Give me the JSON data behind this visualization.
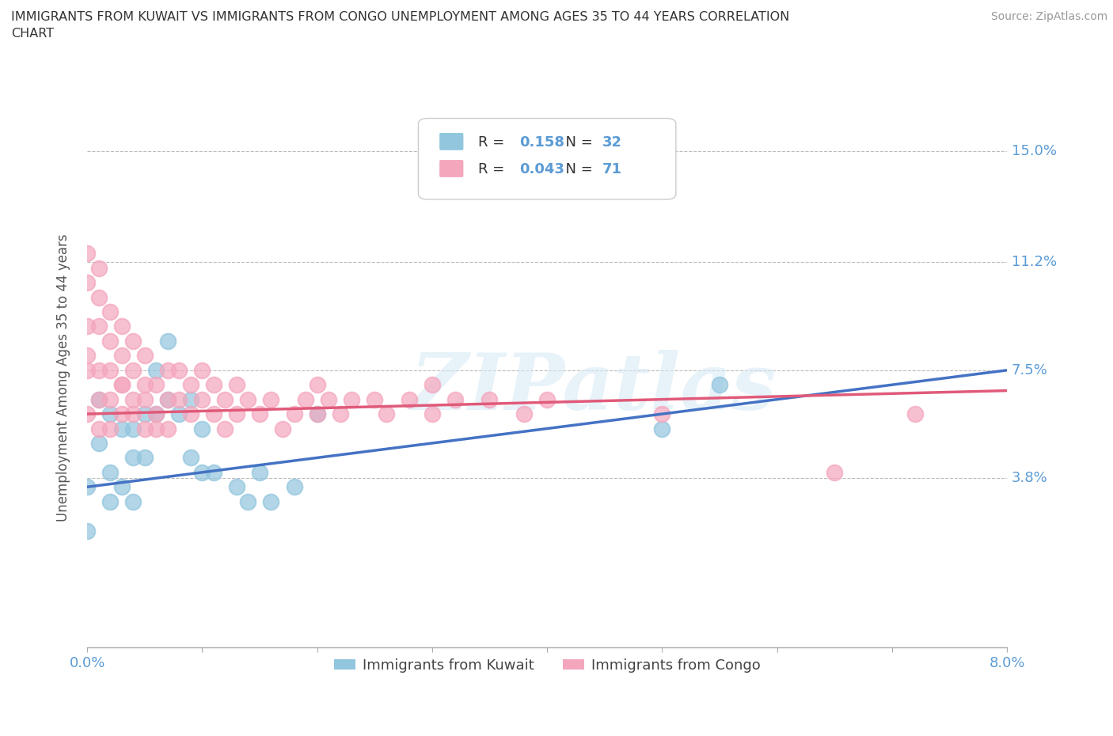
{
  "title": "IMMIGRANTS FROM KUWAIT VS IMMIGRANTS FROM CONGO UNEMPLOYMENT AMONG AGES 35 TO 44 YEARS CORRELATION\nCHART",
  "source_text": "Source: ZipAtlas.com",
  "ylabel": "Unemployment Among Ages 35 to 44 years",
  "xlim": [
    0.0,
    0.08
  ],
  "ylim": [
    -0.02,
    0.165
  ],
  "yticks": [
    0.038,
    0.075,
    0.112,
    0.15
  ],
  "ytick_labels": [
    "3.8%",
    "7.5%",
    "11.2%",
    "15.0%"
  ],
  "xticks": [
    0.0,
    0.01,
    0.02,
    0.03,
    0.04,
    0.05,
    0.06,
    0.07,
    0.08
  ],
  "xtick_labels": [
    "0.0%",
    "",
    "",
    "",
    "",
    "",
    "",
    "",
    "8.0%"
  ],
  "kuwait_color": "#92c5de",
  "congo_color": "#f4a6bd",
  "kuwait_line_color": "#4472c4",
  "congo_line_color": "#e05a7a",
  "kuwait_R": "0.158",
  "kuwait_N": "32",
  "congo_R": "0.043",
  "congo_N": "71",
  "watermark": "ZIPatlas",
  "legend_label_kuwait": "Immigrants from Kuwait",
  "legend_label_congo": "Immigrants from Congo",
  "kuwait_scatter_x": [
    0.0,
    0.0,
    0.001,
    0.001,
    0.002,
    0.002,
    0.002,
    0.003,
    0.003,
    0.004,
    0.004,
    0.004,
    0.005,
    0.005,
    0.006,
    0.006,
    0.007,
    0.007,
    0.008,
    0.009,
    0.009,
    0.01,
    0.01,
    0.011,
    0.013,
    0.014,
    0.015,
    0.016,
    0.018,
    0.02,
    0.05,
    0.055
  ],
  "kuwait_scatter_y": [
    0.035,
    0.02,
    0.05,
    0.065,
    0.04,
    0.06,
    0.03,
    0.055,
    0.035,
    0.045,
    0.03,
    0.055,
    0.06,
    0.045,
    0.06,
    0.075,
    0.065,
    0.085,
    0.06,
    0.065,
    0.045,
    0.055,
    0.04,
    0.04,
    0.035,
    0.03,
    0.04,
    0.03,
    0.035,
    0.06,
    0.055,
    0.07
  ],
  "congo_scatter_x": [
    0.0,
    0.0,
    0.0,
    0.0,
    0.0,
    0.0,
    0.001,
    0.001,
    0.001,
    0.001,
    0.001,
    0.001,
    0.002,
    0.002,
    0.002,
    0.002,
    0.002,
    0.003,
    0.003,
    0.003,
    0.003,
    0.003,
    0.004,
    0.004,
    0.004,
    0.004,
    0.005,
    0.005,
    0.005,
    0.005,
    0.006,
    0.006,
    0.006,
    0.007,
    0.007,
    0.007,
    0.008,
    0.008,
    0.009,
    0.009,
    0.01,
    0.01,
    0.011,
    0.011,
    0.012,
    0.012,
    0.013,
    0.013,
    0.014,
    0.015,
    0.016,
    0.017,
    0.018,
    0.019,
    0.02,
    0.02,
    0.021,
    0.022,
    0.023,
    0.025,
    0.026,
    0.028,
    0.03,
    0.03,
    0.032,
    0.035,
    0.038,
    0.04,
    0.05,
    0.065,
    0.072
  ],
  "congo_scatter_y": [
    0.06,
    0.075,
    0.09,
    0.105,
    0.115,
    0.08,
    0.065,
    0.075,
    0.09,
    0.1,
    0.11,
    0.055,
    0.065,
    0.075,
    0.085,
    0.095,
    0.055,
    0.07,
    0.08,
    0.09,
    0.06,
    0.07,
    0.065,
    0.075,
    0.085,
    0.06,
    0.07,
    0.08,
    0.055,
    0.065,
    0.06,
    0.07,
    0.055,
    0.065,
    0.075,
    0.055,
    0.065,
    0.075,
    0.06,
    0.07,
    0.065,
    0.075,
    0.06,
    0.07,
    0.065,
    0.055,
    0.06,
    0.07,
    0.065,
    0.06,
    0.065,
    0.055,
    0.06,
    0.065,
    0.06,
    0.07,
    0.065,
    0.06,
    0.065,
    0.065,
    0.06,
    0.065,
    0.06,
    0.07,
    0.065,
    0.065,
    0.06,
    0.065,
    0.06,
    0.04,
    0.06
  ],
  "kuwait_trend_x": [
    0.0,
    0.08
  ],
  "kuwait_trend_y": [
    0.035,
    0.075
  ],
  "congo_trend_x": [
    0.0,
    0.08
  ],
  "congo_trend_y": [
    0.06,
    0.068
  ],
  "grid_color": "#bbbbbb",
  "tick_color": "#5b9bd5",
  "value_color": "#5b9bd5",
  "background_color": "#ffffff"
}
